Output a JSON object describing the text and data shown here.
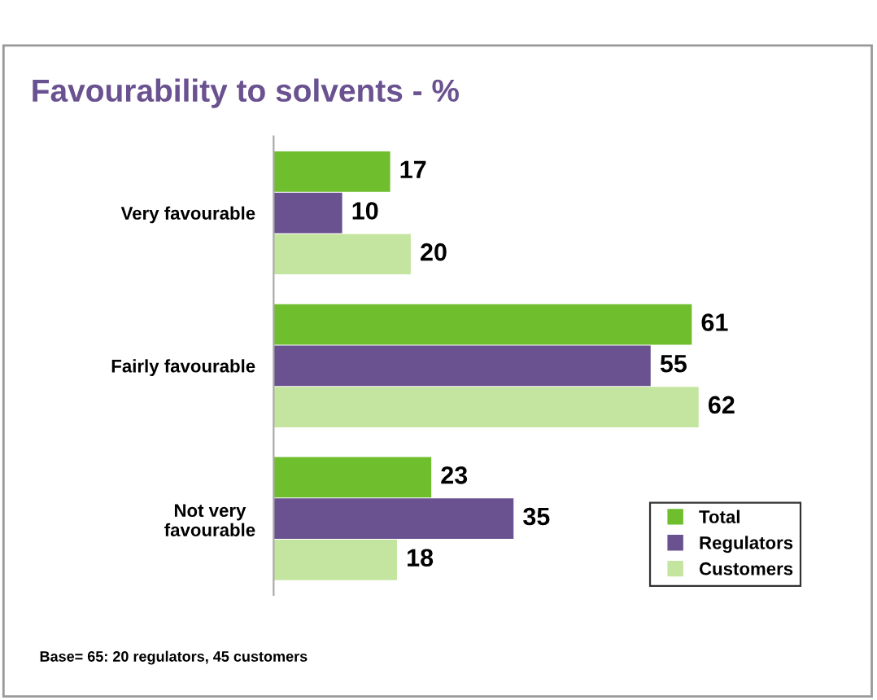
{
  "chart_data": {
    "type": "bar",
    "orientation": "horizontal",
    "title": "Favourability to solvents - %",
    "categories": [
      "Very favourable",
      "Fairly favourable",
      "Not very\nfavourable"
    ],
    "series": [
      {
        "name": "Total",
        "color": "#6ebe2e",
        "values": [
          17,
          61,
          23
        ]
      },
      {
        "name": "Regulators",
        "color": "#6a5190",
        "values": [
          10,
          55,
          35
        ]
      },
      {
        "name": "Customers",
        "color": "#c4e59f",
        "values": [
          20,
          62,
          18
        ]
      }
    ],
    "data_labels": true,
    "legend": "bottom right",
    "grid": false,
    "annotations": [
      "Base= 65: 20 regulators, 45 customers"
    ]
  }
}
